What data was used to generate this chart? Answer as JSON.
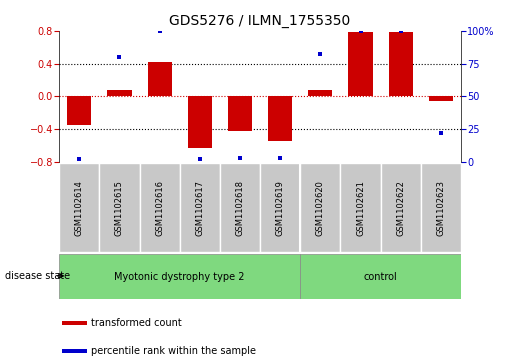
{
  "title": "GDS5276 / ILMN_1755350",
  "samples": [
    "GSM1102614",
    "GSM1102615",
    "GSM1102616",
    "GSM1102617",
    "GSM1102618",
    "GSM1102619",
    "GSM1102620",
    "GSM1102621",
    "GSM1102622",
    "GSM1102623"
  ],
  "red_values": [
    -0.35,
    0.07,
    0.42,
    -0.63,
    -0.43,
    -0.55,
    0.07,
    0.79,
    0.79,
    -0.06
  ],
  "blue_values": [
    2,
    80,
    100,
    2,
    3,
    3,
    82,
    100,
    100,
    22
  ],
  "ylim_left": [
    -0.8,
    0.8
  ],
  "ylim_right": [
    0,
    100
  ],
  "yticks_left": [
    -0.8,
    -0.4,
    0.0,
    0.4,
    0.8
  ],
  "yticks_right": [
    0,
    25,
    50,
    75,
    100
  ],
  "group1_label": "Myotonic dystrophy type 2",
  "group1_samples": 6,
  "group2_label": "control",
  "group2_samples": 4,
  "disease_state_label": "disease state",
  "red_color": "#CC0000",
  "blue_color": "#0000CC",
  "bar_width": 0.6,
  "legend_red": "transformed count",
  "legend_blue": "percentile rank within the sample",
  "sample_box_color": "#C8C8C8",
  "group_color": "#7FD97F",
  "title_fontsize": 10,
  "axis_fontsize": 8,
  "tick_fontsize": 7,
  "label_fontsize": 7
}
